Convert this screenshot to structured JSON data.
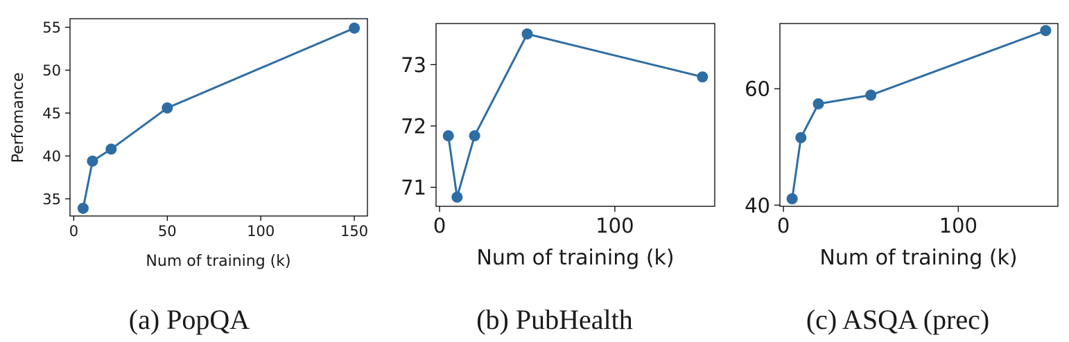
{
  "colors": {
    "series": "#2e6da4",
    "axis": "#000000"
  },
  "chart_data": [
    {
      "type": "line",
      "caption": "(a) PopQA",
      "xlabel": "Num of training (k)",
      "ylabel": "Perfomance",
      "x": [
        5,
        10,
        20,
        50,
        150
      ],
      "series": [
        {
          "values": [
            33.9,
            39.4,
            40.8,
            45.6,
            54.9
          ]
        }
      ],
      "xlim": [
        -2,
        157
      ],
      "ylim": [
        33,
        56
      ],
      "xticks": [
        0,
        50,
        100,
        150
      ],
      "yticks": [
        35,
        40,
        45,
        50,
        55
      ],
      "grid": false
    },
    {
      "type": "line",
      "caption": "(b) PubHealth",
      "xlabel": "Num of training (k)",
      "ylabel": "",
      "x": [
        5,
        10,
        20,
        50,
        150
      ],
      "series": [
        {
          "values": [
            71.84,
            70.84,
            71.84,
            73.5,
            72.8
          ]
        }
      ],
      "xlim": [
        -2,
        157
      ],
      "ylim": [
        70.69,
        73.67
      ],
      "xticks": [
        0,
        100
      ],
      "yticks": [
        71,
        72,
        73
      ],
      "grid": false
    },
    {
      "type": "line",
      "caption": "(c) ASQA (prec)",
      "xlabel": "Num of training (k)",
      "ylabel": "",
      "x": [
        5,
        10,
        20,
        50,
        150
      ],
      "series": [
        {
          "values": [
            41.1,
            51.6,
            57.4,
            58.9,
            70.0
          ]
        }
      ],
      "xlim": [
        -2,
        157
      ],
      "ylim": [
        39.8,
        71.2
      ],
      "xticks": [
        0,
        100
      ],
      "yticks": [
        40,
        60
      ],
      "grid": false
    }
  ]
}
